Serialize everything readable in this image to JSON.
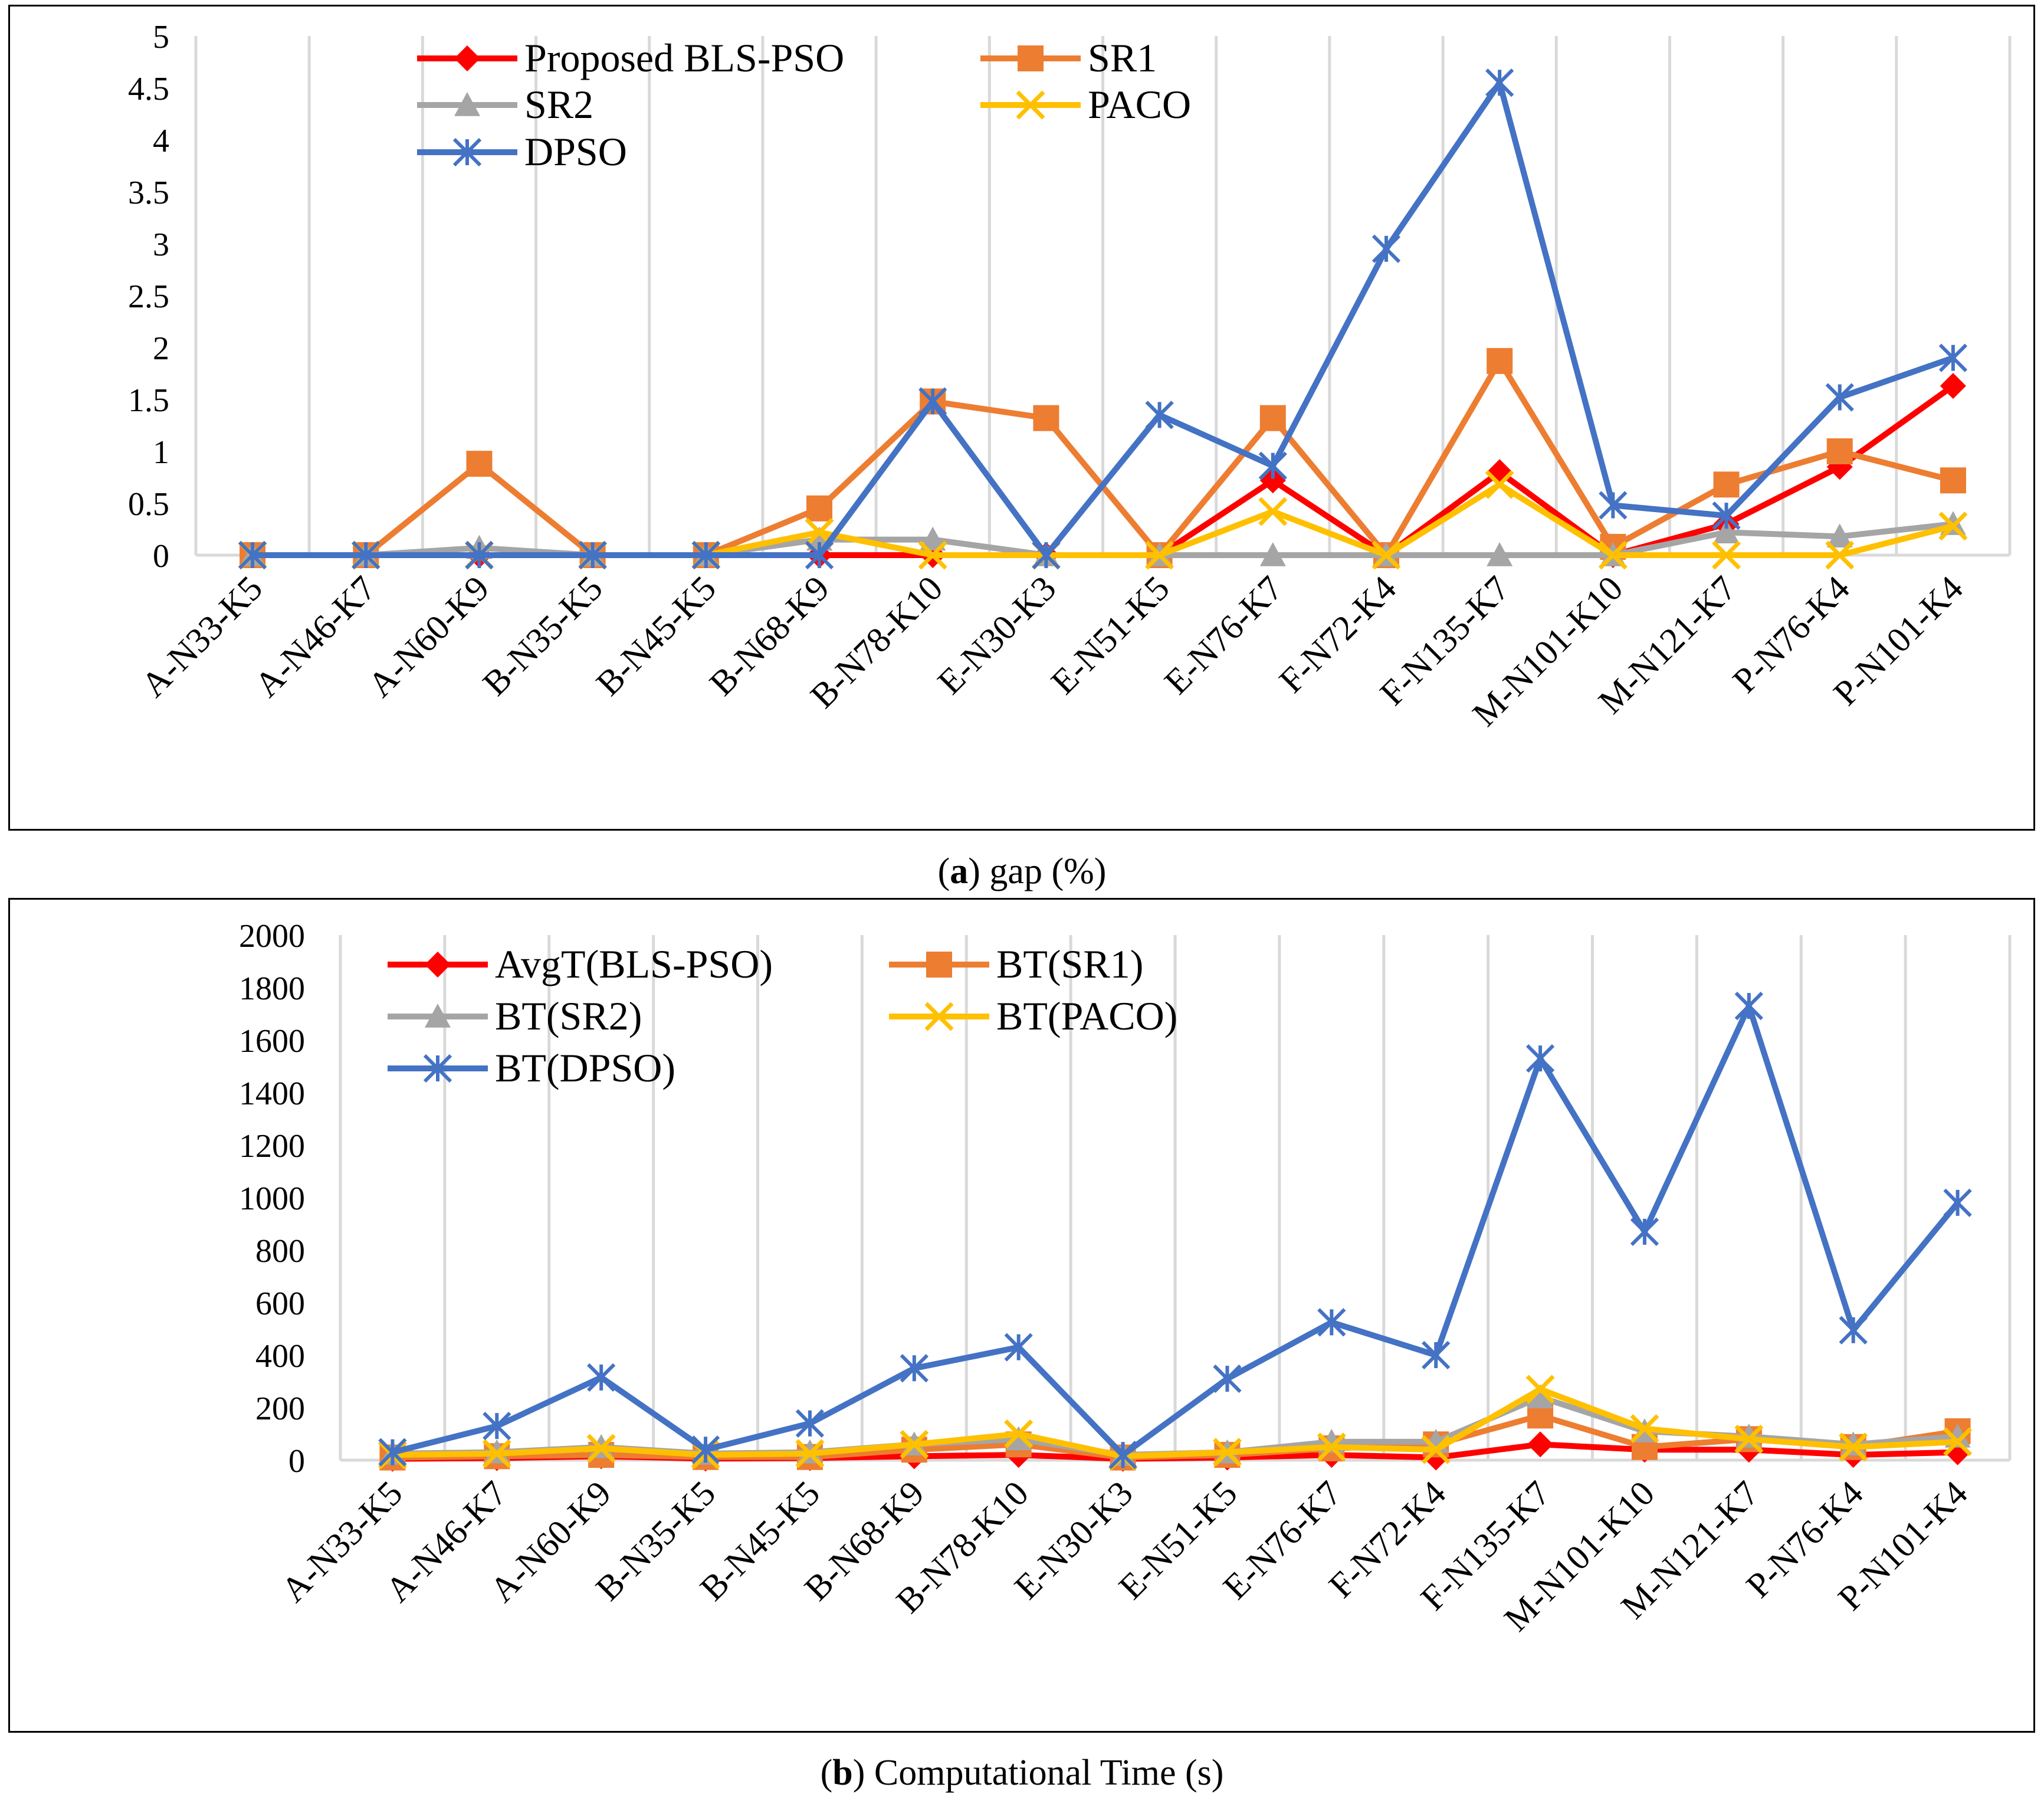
{
  "chart_data": [
    {
      "type": "line",
      "panel": "a",
      "caption_letter": "a",
      "caption_text": " gap (%)",
      "categories": [
        "A-N33-K5",
        "A-N46-K7",
        "A-N60-K9",
        "B-N35-K5",
        "B-N45-K5",
        "B-N68-K9",
        "B-N78-K10",
        "E-N30-K3",
        "E-N51-K5",
        "E-N76-K7",
        "F-N72-K4",
        "F-N135-K7",
        "M-N101-K10",
        "M-N121-K7",
        "P-N76-K4",
        "P-N101-K4"
      ],
      "ylim": [
        0,
        5
      ],
      "yticks": [
        0,
        0.5,
        1,
        1.5,
        2,
        2.5,
        3,
        3.5,
        4,
        4.5,
        5
      ],
      "grid": "vertical",
      "legend": "top",
      "series": [
        {
          "name": "Proposed BLS-PSO",
          "color": "#ff0000",
          "marker": "diamond",
          "values": [
            0,
            0,
            0,
            0,
            0,
            0,
            0,
            0,
            0,
            0.72,
            0,
            0.8,
            0,
            0.3,
            0.85,
            1.63
          ]
        },
        {
          "name": "SR1",
          "color": "#ed7d31",
          "marker": "square",
          "values": [
            0,
            0,
            0.88,
            0,
            0,
            0.45,
            1.48,
            1.32,
            0,
            1.32,
            0,
            1.87,
            0.08,
            0.68,
            1.0,
            0.72
          ]
        },
        {
          "name": "SR2",
          "color": "#a5a5a5",
          "marker": "triangle",
          "values": [
            0,
            0,
            0.07,
            0,
            0,
            0.15,
            0.15,
            0,
            0,
            0,
            0,
            0,
            0,
            0.22,
            0.18,
            0.3
          ]
        },
        {
          "name": "PACO",
          "color": "#ffc000",
          "marker": "x",
          "values": [
            0,
            0,
            0,
            0,
            0,
            0.22,
            0,
            0,
            0,
            0.42,
            0,
            0.68,
            0,
            0,
            0,
            0.28
          ]
        },
        {
          "name": "DPSO",
          "color": "#4472c4",
          "marker": "star",
          "values": [
            0,
            0,
            0,
            0,
            0,
            0,
            1.48,
            0,
            1.35,
            0.86,
            2.95,
            4.55,
            0.48,
            0.38,
            1.52,
            1.9
          ]
        }
      ]
    },
    {
      "type": "line",
      "panel": "b",
      "caption_letter": "b",
      "caption_text": " Computational Time (s)",
      "categories": [
        "A-N33-K5",
        "A-N46-K7",
        "A-N60-K9",
        "B-N35-K5",
        "B-N45-K5",
        "B-N68-K9",
        "B-N78-K10",
        "E-N30-K3",
        "E-N51-K5",
        "E-N76-K7",
        "F-N72-K4",
        "F-N135-K7",
        "M-N101-K10",
        "M-N121-K7",
        "P-N76-K4",
        "P-N101-K4"
      ],
      "ylim": [
        0,
        2000
      ],
      "yticks": [
        0,
        200,
        400,
        600,
        800,
        1000,
        1200,
        1400,
        1600,
        1800,
        2000
      ],
      "grid": "vertical",
      "legend": "top",
      "series": [
        {
          "name": "AvgT(BLS-PSO)",
          "color": "#ff0000",
          "marker": "diamond",
          "values": [
            5,
            8,
            15,
            6,
            8,
            15,
            20,
            5,
            10,
            20,
            10,
            60,
            40,
            40,
            20,
            30
          ]
        },
        {
          "name": "BT(SR1)",
          "color": "#ed7d31",
          "marker": "square",
          "values": [
            10,
            15,
            20,
            12,
            12,
            40,
            60,
            10,
            20,
            45,
            60,
            170,
            50,
            80,
            50,
            110
          ]
        },
        {
          "name": "BT(SR2)",
          "color": "#a5a5a5",
          "marker": "triangle",
          "values": [
            25,
            30,
            50,
            25,
            30,
            60,
            80,
            20,
            30,
            70,
            70,
            240,
            110,
            90,
            60,
            90
          ]
        },
        {
          "name": "BT(PACO)",
          "color": "#ffc000",
          "marker": "x",
          "values": [
            20,
            25,
            45,
            20,
            25,
            60,
            100,
            15,
            30,
            50,
            40,
            270,
            120,
            80,
            50,
            70
          ]
        },
        {
          "name": "BT(DPSO)",
          "color": "#4472c4",
          "marker": "star",
          "values": [
            30,
            130,
            315,
            40,
            140,
            350,
            430,
            20,
            310,
            525,
            400,
            1530,
            870,
            1730,
            495,
            980
          ]
        }
      ]
    }
  ]
}
